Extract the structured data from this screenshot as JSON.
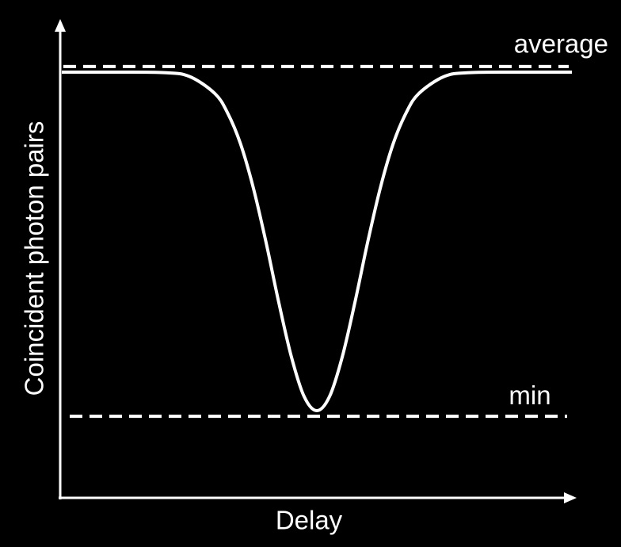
{
  "chart_data": {
    "type": "line",
    "x_label": "Delay",
    "y_label": "Coincident photon pairs",
    "xlim": [
      0,
      1
    ],
    "ylim": [
      0,
      1
    ],
    "x": [
      0,
      0.1,
      0.2,
      0.25,
      0.3,
      0.325,
      0.35,
      0.375,
      0.4,
      0.425,
      0.45,
      0.475,
      0.5,
      0.525,
      0.55,
      0.575,
      0.6,
      0.625,
      0.65,
      0.675,
      0.7,
      0.75,
      0.8,
      0.9,
      1
    ],
    "series": [
      {
        "color": "#ffffff",
        "values": [
          0.898,
          0.898,
          0.897,
          0.889,
          0.853,
          0.812,
          0.748,
          0.656,
          0.541,
          0.414,
          0.298,
          0.214,
          0.184,
          0.214,
          0.298,
          0.414,
          0.541,
          0.656,
          0.748,
          0.812,
          0.853,
          0.889,
          0.897,
          0.898,
          0.898
        ]
      }
    ],
    "reference_lines": [
      {
        "label": "average",
        "value": 0.91
      },
      {
        "label": "min",
        "value": 0.172
      }
    ]
  }
}
